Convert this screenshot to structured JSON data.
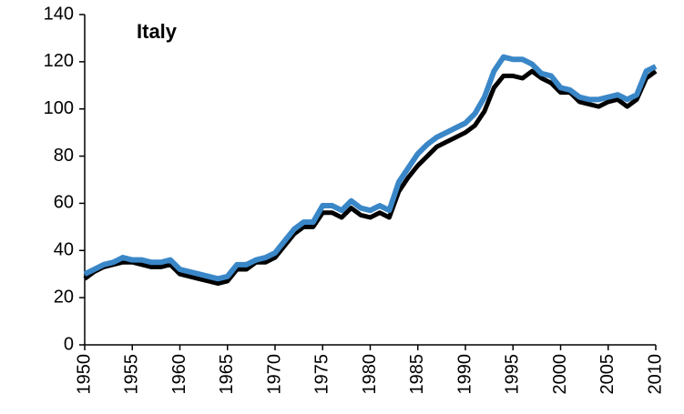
{
  "chart_data": {
    "type": "line",
    "title": "Italy",
    "x": [
      1950,
      1951,
      1952,
      1953,
      1954,
      1955,
      1956,
      1957,
      1958,
      1959,
      1960,
      1961,
      1962,
      1963,
      1964,
      1965,
      1966,
      1967,
      1968,
      1969,
      1970,
      1971,
      1972,
      1973,
      1974,
      1975,
      1976,
      1977,
      1978,
      1979,
      1980,
      1981,
      1982,
      1983,
      1984,
      1985,
      1986,
      1987,
      1988,
      1989,
      1990,
      1991,
      1992,
      1993,
      1994,
      1995,
      1996,
      1997,
      1998,
      1999,
      2000,
      2001,
      2002,
      2003,
      2004,
      2005,
      2006,
      2007,
      2008,
      2009,
      2010
    ],
    "series": [
      {
        "color": "#000000",
        "values": [
          28,
          31,
          33,
          34,
          35,
          35,
          34,
          33,
          33,
          34,
          30,
          29,
          28,
          27,
          26,
          27,
          32,
          32,
          35,
          35,
          37,
          42,
          47,
          50,
          50,
          56,
          56,
          54,
          58,
          55,
          54,
          56,
          54,
          65,
          71,
          76,
          80,
          84,
          86,
          88,
          90,
          93,
          99,
          109,
          114,
          114,
          113,
          116,
          113,
          111,
          107,
          107,
          103,
          102,
          101,
          103,
          104,
          101,
          104,
          113,
          116
        ]
      },
      {
        "color": "#3a87c8",
        "values": [
          30,
          32,
          34,
          35,
          37,
          36,
          36,
          35,
          35,
          36,
          32,
          31,
          30,
          29,
          28,
          29,
          34,
          34,
          36,
          37,
          39,
          44,
          49,
          52,
          52,
          59,
          59,
          57,
          61,
          58,
          57,
          59,
          57,
          69,
          75,
          81,
          85,
          88,
          90,
          92,
          94,
          98,
          105,
          116,
          122,
          121,
          121,
          119,
          115,
          114,
          109,
          108,
          105,
          104,
          104,
          105,
          106,
          104,
          106,
          116,
          118
        ]
      }
    ],
    "xlim": [
      1950,
      2010
    ],
    "xticks": [
      1950,
      1955,
      1960,
      1965,
      1970,
      1975,
      1980,
      1985,
      1990,
      1995,
      2000,
      2005,
      2010
    ],
    "ylim": [
      0,
      140
    ],
    "yticks": [
      0,
      20,
      40,
      60,
      80,
      100,
      120,
      140
    ],
    "grid": false
  }
}
